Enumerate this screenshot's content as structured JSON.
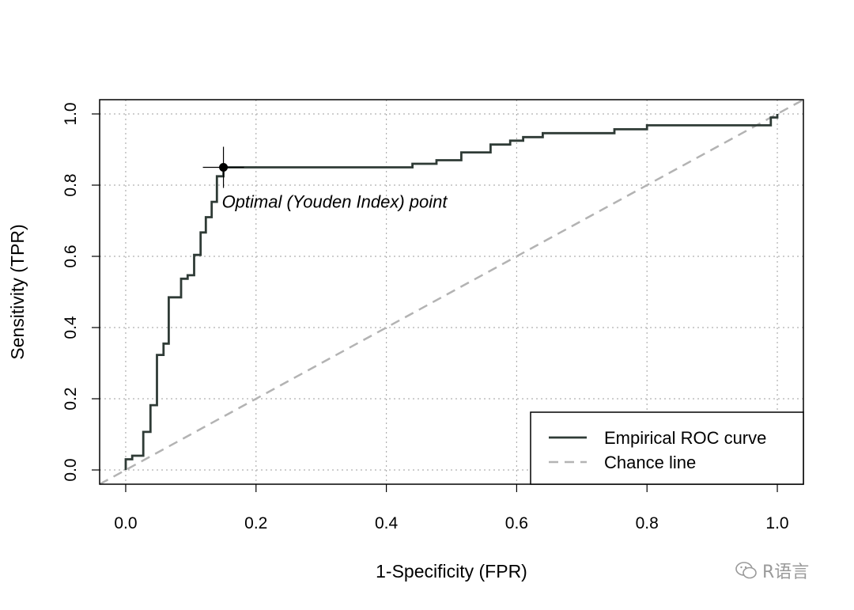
{
  "chart_data": {
    "type": "line",
    "xlabel": "1-Specificity (FPR)",
    "ylabel": "Sensitivity (TPR)",
    "xlim": [
      -0.04,
      1.04
    ],
    "ylim": [
      -0.04,
      1.04
    ],
    "x_ticks": [
      "0.0",
      "0.2",
      "0.4",
      "0.6",
      "0.8",
      "1.0"
    ],
    "y_ticks": [
      "0.0",
      "0.2",
      "0.4",
      "0.6",
      "0.8",
      "1.0"
    ],
    "grid": true,
    "legend_position": "bottom-right",
    "series": [
      {
        "name": "Empirical ROC curve",
        "style": "solid",
        "color": "#2f3b36",
        "points": [
          [
            0.0,
            0.0
          ],
          [
            0.0,
            0.03
          ],
          [
            0.01,
            0.03
          ],
          [
            0.01,
            0.04
          ],
          [
            0.027,
            0.04
          ],
          [
            0.027,
            0.107
          ],
          [
            0.038,
            0.107
          ],
          [
            0.038,
            0.182
          ],
          [
            0.048,
            0.182
          ],
          [
            0.048,
            0.323
          ],
          [
            0.058,
            0.323
          ],
          [
            0.058,
            0.355
          ],
          [
            0.066,
            0.355
          ],
          [
            0.066,
            0.485
          ],
          [
            0.085,
            0.485
          ],
          [
            0.085,
            0.537
          ],
          [
            0.095,
            0.537
          ],
          [
            0.095,
            0.547
          ],
          [
            0.105,
            0.547
          ],
          [
            0.105,
            0.604
          ],
          [
            0.115,
            0.604
          ],
          [
            0.115,
            0.667
          ],
          [
            0.123,
            0.667
          ],
          [
            0.123,
            0.71
          ],
          [
            0.132,
            0.71
          ],
          [
            0.132,
            0.753
          ],
          [
            0.14,
            0.753
          ],
          [
            0.14,
            0.825
          ],
          [
            0.15,
            0.825
          ],
          [
            0.15,
            0.85
          ],
          [
            0.44,
            0.85
          ],
          [
            0.44,
            0.86
          ],
          [
            0.477,
            0.86
          ],
          [
            0.477,
            0.87
          ],
          [
            0.515,
            0.87
          ],
          [
            0.515,
            0.892
          ],
          [
            0.56,
            0.892
          ],
          [
            0.56,
            0.914
          ],
          [
            0.59,
            0.914
          ],
          [
            0.59,
            0.925
          ],
          [
            0.61,
            0.925
          ],
          [
            0.61,
            0.935
          ],
          [
            0.64,
            0.935
          ],
          [
            0.64,
            0.946
          ],
          [
            0.75,
            0.946
          ],
          [
            0.75,
            0.957
          ],
          [
            0.8,
            0.957
          ],
          [
            0.8,
            0.968
          ],
          [
            0.99,
            0.968
          ],
          [
            0.99,
            0.99
          ],
          [
            1.0,
            0.99
          ],
          [
            1.0,
            1.0
          ]
        ]
      },
      {
        "name": "Chance line",
        "style": "dashed",
        "color": "#b3b3b3",
        "points": [
          [
            -0.04,
            -0.04
          ],
          [
            1.04,
            1.04
          ]
        ]
      }
    ],
    "optimal_point": {
      "x": 0.15,
      "y": 0.85
    },
    "annotation": "Optimal (Youden Index) point"
  },
  "watermark": {
    "text": "R语言",
    "icon": "wechat-icon"
  }
}
